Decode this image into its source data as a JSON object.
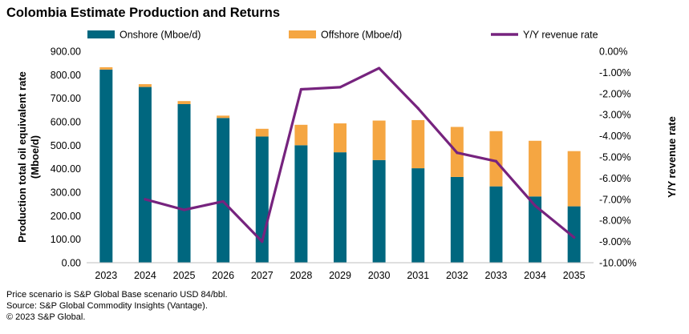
{
  "title": "Colombia Estimate Production and Returns",
  "chart_data": {
    "type": "bar",
    "stacked": true,
    "categories": [
      "2023",
      "2024",
      "2025",
      "2026",
      "2027",
      "2028",
      "2029",
      "2030",
      "2031",
      "2032",
      "2033",
      "2034",
      "2035"
    ],
    "series": [
      {
        "name": "Onshore (Mboe/d)",
        "type": "bar",
        "axis": "left",
        "color": "#00677F",
        "values": [
          822,
          748,
          675,
          616,
          537,
          500,
          470,
          437,
          402,
          365,
          325,
          282,
          240
        ]
      },
      {
        "name": "Offshore (Mboe/d)",
        "type": "bar",
        "axis": "left",
        "color": "#F5A642",
        "values": [
          10,
          12,
          13,
          10,
          33,
          87,
          123,
          168,
          205,
          213,
          235,
          237,
          235
        ]
      },
      {
        "name": "Y/Y revenue rate",
        "type": "line",
        "axis": "right",
        "color": "#76237E",
        "values": [
          null,
          -7.0,
          -7.5,
          -7.1,
          -9.0,
          -1.8,
          -1.7,
          -0.8,
          -2.7,
          -4.8,
          -5.2,
          -7.3,
          -8.8
        ]
      }
    ],
    "ylabel": "Production total oil equivalent  rate (Mboe/d)",
    "ylabel_lines": [
      "Production total oil equivalent  rate",
      "(Mboe/d)"
    ],
    "y2label": "Y/Y revenue rate",
    "ylim": [
      0,
      900
    ],
    "y2lim": [
      -10,
      0
    ],
    "y_ticks": [
      "0.00",
      "100.00",
      "200.00",
      "300.00",
      "400.00",
      "500.00",
      "600.00",
      "700.00",
      "800.00",
      "900.00"
    ],
    "y2_ticks": [
      "-10.00%",
      "-9.00%",
      "-8.00%",
      "-7.00%",
      "-6.00%",
      "-5.00%",
      "-4.00%",
      "-3.00%",
      "-2.00%",
      "-1.00%",
      "0.00%"
    ],
    "grid": false,
    "legend_position": "top"
  },
  "footnotes": [
    "Price scenario is S&P Global  Base scenario USD 84/bbl.",
    "Source: S&P Global Commodity Insights (Vantage).",
    "© 2023 S&P Global."
  ]
}
